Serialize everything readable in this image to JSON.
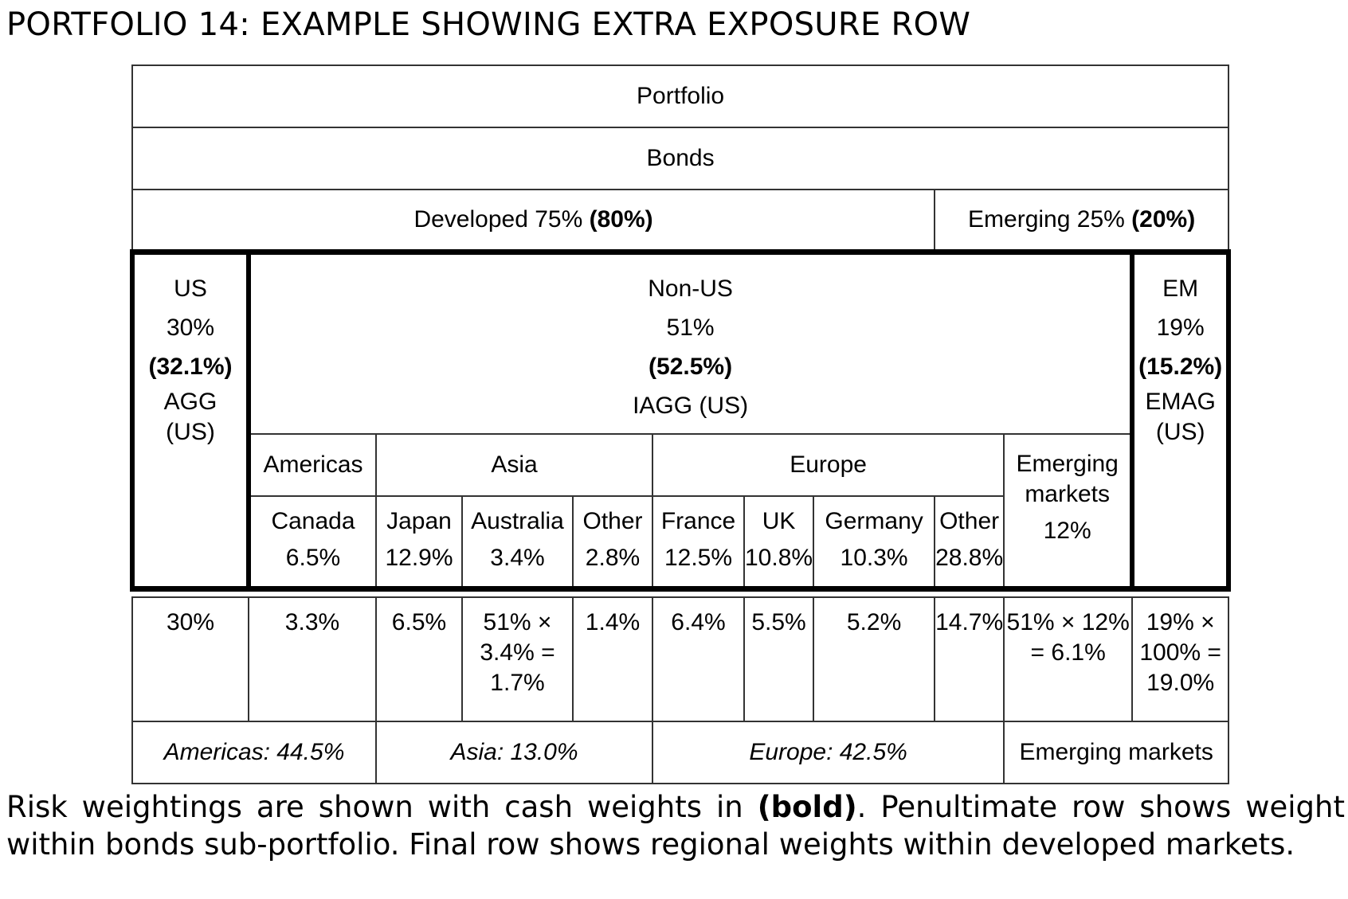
{
  "title": "PORTFOLIO 14: EXAMPLE SHOWING EXTRA EXPOSURE ROW",
  "table": {
    "portfolio": "Portfolio",
    "bonds": "Bonds",
    "developed": {
      "label": "Developed 75%",
      "cash": "(80%)"
    },
    "emerging": {
      "label": "Emerging 25%",
      "cash": "(20%)"
    },
    "us": {
      "name": "US",
      "risk": "30%",
      "cash": "(32.1%)",
      "fund1": "AGG",
      "fund2": "(US)"
    },
    "nonus": {
      "name": "Non-US",
      "risk": "51%",
      "cash": "(52.5%)",
      "fund": "IAGG (US)"
    },
    "em": {
      "name": "EM",
      "risk": "19%",
      "cash": "(15.2%)",
      "fund1": "EMAG",
      "fund2": "(US)"
    },
    "regions": {
      "americas": "Americas",
      "asia": "Asia",
      "europe": "Europe",
      "emerging_line1": "Emerging",
      "emerging_line2": "markets",
      "emerging_value": "12%"
    },
    "countries": [
      {
        "name": "Canada",
        "value": "6.5%"
      },
      {
        "name": "Japan",
        "value": "12.9%"
      },
      {
        "name": "Australia",
        "value": "3.4%"
      },
      {
        "name": "Other",
        "value": "2.8%"
      },
      {
        "name": "France",
        "value": "12.5%"
      },
      {
        "name": "UK",
        "value": "10.8%"
      },
      {
        "name": "Germany",
        "value": "10.3%"
      },
      {
        "name": "Other",
        "value": "28.8%"
      }
    ],
    "exposure_row": {
      "us": "30%",
      "canada": "3.3%",
      "japan": "6.5%",
      "australia": [
        "51% ×",
        "3.4% =",
        "1.7%"
      ],
      "asia_other": "1.4%",
      "france": "6.4%",
      "uk": "5.5%",
      "germany": "5.2%",
      "europe_other": "14.7%",
      "emerging": [
        "51% × 12%",
        "= 6.1%"
      ],
      "em": [
        "19% ×",
        "100% =",
        "19.0%"
      ]
    },
    "regional_row": {
      "americas": "Americas: 44.5%",
      "asia": "Asia: 13.0%",
      "europe": "Europe: 42.5%",
      "emerging": "Emerging markets"
    }
  },
  "caption": {
    "part1": "Risk weightings are shown with cash weights in ",
    "bold": "(bold)",
    "part2": ". Penultimate row shows weight within bonds sub-portfolio. Final row shows regional weights within developed markets."
  }
}
